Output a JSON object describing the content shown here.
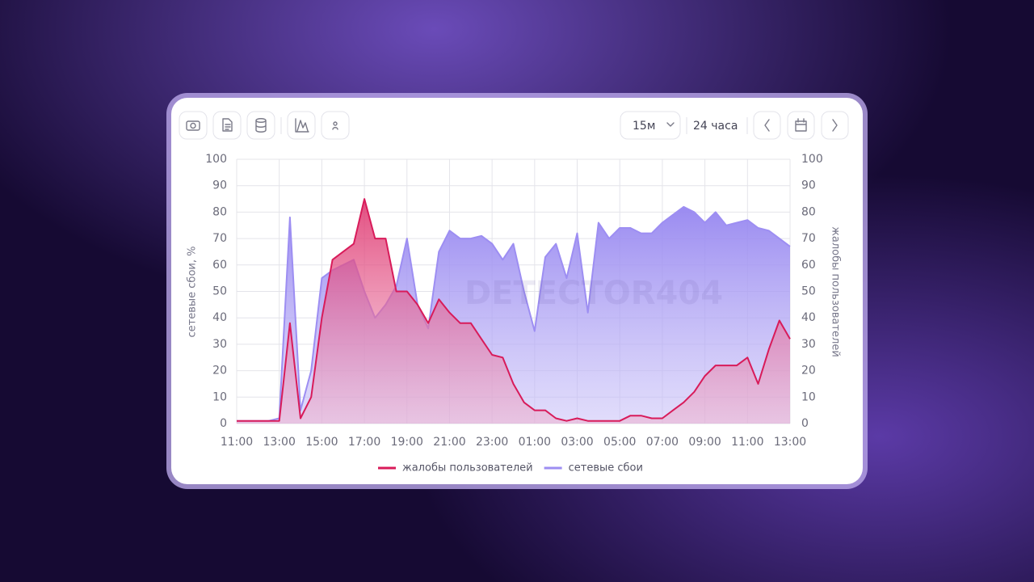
{
  "toolbar": {
    "interval": "15м",
    "range": "24 часа"
  },
  "watermark": "DETECTOR404",
  "chart_data": {
    "type": "area",
    "categories": [
      "11:00",
      null,
      null,
      null,
      "13:00",
      null,
      null,
      null,
      "15:00",
      null,
      null,
      null,
      "17:00",
      null,
      null,
      null,
      "19:00",
      null,
      null,
      null,
      "21:00",
      null,
      null,
      null,
      "23:00",
      null,
      null,
      null,
      "01:00",
      null,
      null,
      null,
      "03:00",
      null,
      null,
      null,
      "05:00",
      null,
      null,
      null,
      "07:00",
      null,
      null,
      null,
      "09:00",
      null,
      null,
      null,
      "11:00",
      null,
      null,
      null,
      "13:00"
    ],
    "y_label": "сетевые сбои, %",
    "y2_label": "жалобы пользователей",
    "ylim": [
      0,
      100
    ],
    "yticks": [
      0,
      10,
      20,
      30,
      40,
      50,
      60,
      70,
      80,
      90,
      100
    ],
    "y2lim": [
      0,
      100
    ],
    "y2ticks": [
      0,
      10,
      20,
      30,
      40,
      50,
      60,
      70,
      80,
      90,
      100
    ],
    "grid": true,
    "legend": "bottom",
    "series": [
      {
        "name": "жалобы пользователей",
        "color": "#d81b5a",
        "axis": "y2",
        "values": [
          1,
          1,
          1,
          1,
          1,
          38,
          2,
          10,
          40,
          62,
          65,
          68,
          85,
          70,
          70,
          50,
          50,
          45,
          38,
          47,
          42,
          38,
          38,
          32,
          26,
          25,
          15,
          8,
          5,
          5,
          2,
          1,
          2,
          1,
          1,
          1,
          1,
          3,
          3,
          2,
          2,
          5,
          8,
          12,
          18,
          22,
          22,
          22,
          25,
          15,
          28,
          39,
          32
        ]
      },
      {
        "name": "сетевые сбои",
        "color": "#9d8ef2",
        "values": [
          1,
          1,
          1,
          1,
          2,
          78,
          5,
          20,
          55,
          58,
          60,
          62,
          50,
          40,
          45,
          52,
          70,
          45,
          36,
          65,
          73,
          70,
          70,
          71,
          68,
          62,
          68,
          50,
          35,
          63,
          68,
          55,
          72,
          42,
          76,
          70,
          74,
          74,
          72,
          72,
          76,
          79,
          82,
          80,
          76,
          80,
          75,
          76,
          77,
          74,
          73,
          70,
          67
        ]
      }
    ]
  }
}
